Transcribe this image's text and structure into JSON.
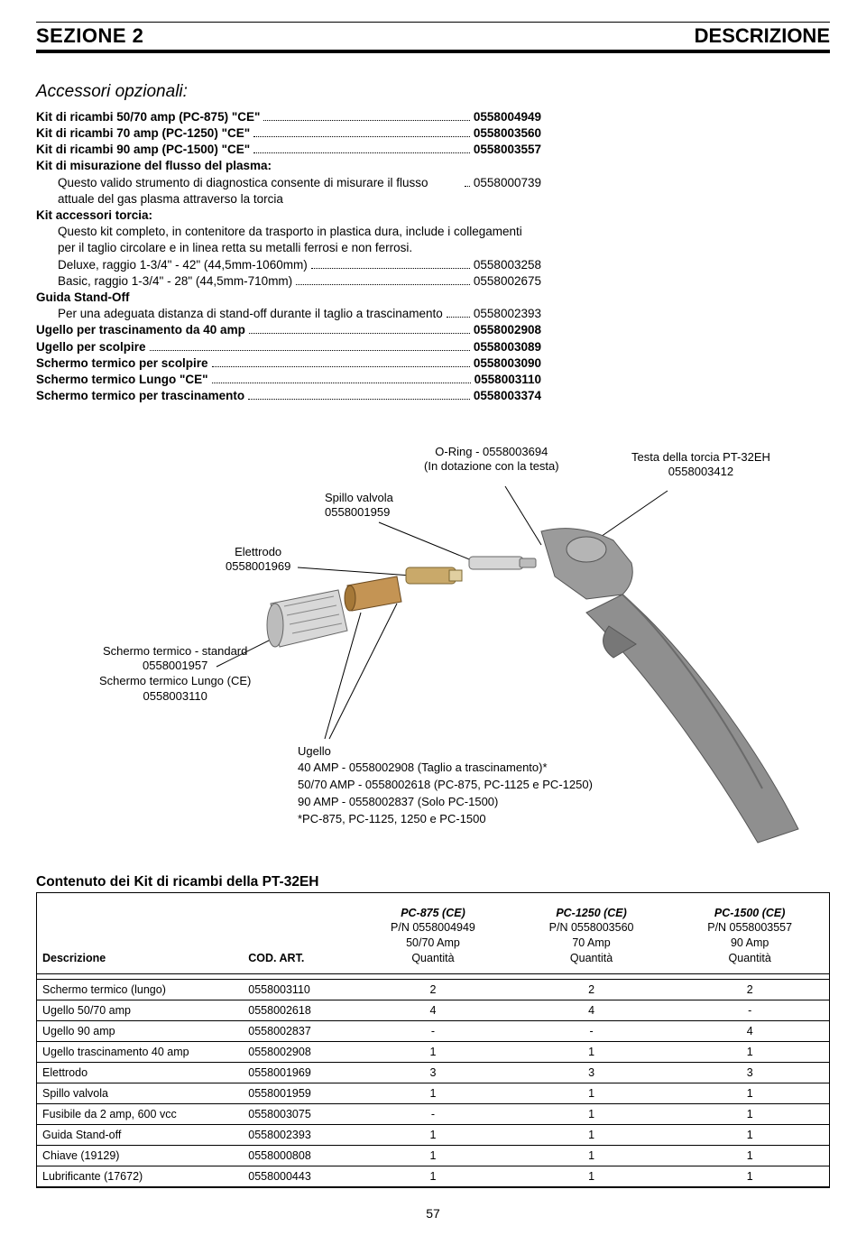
{
  "header": {
    "left": "SEZIONE 2",
    "right": "DESCRIZIONE"
  },
  "accessories": {
    "title": "Accessori opzionali:",
    "items": [
      {
        "label": "Kit di ricambi 50/70 amp (PC-875) \"CE\"",
        "code": "0558004949",
        "bold": true
      },
      {
        "label": "Kit di ricambi 70 amp (PC-1250) \"CE\"",
        "code": "0558003560",
        "bold": true
      },
      {
        "label": "Kit di ricambi 90 amp (PC-1500) \"CE\"",
        "code": "0558003557",
        "bold": true
      }
    ],
    "plasma_label": "Kit di misurazione del flusso del plasma:",
    "plasma_body": "Questo valido strumento di diagnostica consente di misurare il flusso attuale del gas plasma attraverso la torcia",
    "plasma_code": "0558000739",
    "torcia_label": "Kit accessori torcia:",
    "torcia_body1": "Questo kit completo, in contenitore da trasporto in plastica dura, include i collegamenti per il taglio circolare e in linea retta su metalli ferrosi e non ferrosi.",
    "deluxe_label": "Deluxe, raggio 1-3/4\" - 42\" (44,5mm-1060mm)",
    "deluxe_code": "0558003258",
    "basic_label": "Basic, raggio 1-3/4\" - 28\" (44,5mm-710mm)",
    "basic_code": "0558002675",
    "standoff_label": "Guida Stand-Off",
    "standoff_body": "Per una adeguata distanza di stand-off durante il taglio a trascinamento",
    "standoff_code": "0558002393",
    "tail": [
      {
        "label": "Ugello per trascinamento da 40 amp",
        "code": "0558002908",
        "bold": true
      },
      {
        "label": "Ugello per scolpire",
        "code": "0558003089",
        "bold": true
      },
      {
        "label": "Schermo termico per scolpire",
        "code": "0558003090",
        "bold": true
      },
      {
        "label": "Schermo termico Lungo \"CE\"",
        "code": "0558003110",
        "bold": true
      },
      {
        "label": "Schermo termico per trascinamento",
        "code": "0558003374",
        "bold": true
      }
    ]
  },
  "diagram": {
    "oring": {
      "l1": "O-Ring - 0558003694",
      "l2": "(In dotazione con la testa)"
    },
    "head": {
      "l1": "Testa della torcia PT-32EH",
      "l2": "0558003412"
    },
    "spillo": {
      "l1": "Spillo valvola",
      "l2": "0558001959"
    },
    "elettrodo": {
      "l1": "Elettrodo",
      "l2": "0558001969"
    },
    "schermo": {
      "l1": "Schermo termico - standard",
      "l2": "0558001957",
      "l3": "Schermo termico Lungo (CE)",
      "l4": "0558003110"
    },
    "ugello": {
      "title": "Ugello",
      "l1": "40 AMP - 0558002908 (Taglio a trascinamento)*",
      "l2": "50/70 AMP - 0558002618 (PC-875, PC-1125 e PC-1250)",
      "l3": "90 AMP - 0558002837 (Solo PC-1500)",
      "l4": "*PC-875, PC-1125, 1250 e PC-1500"
    },
    "colors": {
      "body": "#9b9b9b",
      "body_dark": "#6f6f6f",
      "metal": "#c9c9c9",
      "metal_light": "#e4e4e4",
      "line": "#000000"
    }
  },
  "table": {
    "title": "Contenuto dei Kit di ricambi della PT-32EH",
    "columns": {
      "desc": "Descrizione",
      "cod": "COD. ART.",
      "c1": {
        "model": "PC-875 (CE)",
        "pn": "P/N 0558004949",
        "amp": "50/70 Amp",
        "qty": "Quantità"
      },
      "c2": {
        "model": "PC-1250 (CE)",
        "pn": "P/N 0558003560",
        "amp": "70 Amp",
        "qty": "Quantità"
      },
      "c3": {
        "model": "PC-1500 (CE)",
        "pn": "P/N 0558003557",
        "amp": "90 Amp",
        "qty": "Quantità"
      }
    },
    "rows": [
      {
        "desc": "Schermo termico (lungo)",
        "cod": "0558003110",
        "q": [
          "2",
          "2",
          "2"
        ]
      },
      {
        "desc": "Ugello 50/70 amp",
        "cod": "0558002618",
        "q": [
          "4",
          "4",
          "-"
        ]
      },
      {
        "desc": "Ugello 90 amp",
        "cod": "0558002837",
        "q": [
          "-",
          "-",
          "4"
        ]
      },
      {
        "desc": "Ugello trascinamento 40 amp",
        "cod": "0558002908",
        "q": [
          "1",
          "1",
          "1"
        ]
      },
      {
        "desc": "Elettrodo",
        "cod": "0558001969",
        "q": [
          "3",
          "3",
          "3"
        ]
      },
      {
        "desc": "Spillo valvola",
        "cod": "0558001959",
        "q": [
          "1",
          "1",
          "1"
        ]
      },
      {
        "desc": "Fusibile da 2 amp, 600 vcc",
        "cod": "0558003075",
        "q": [
          "-",
          "1",
          "1"
        ]
      },
      {
        "desc": "Guida Stand-off",
        "cod": "0558002393",
        "q": [
          "1",
          "1",
          "1"
        ]
      },
      {
        "desc": "Chiave (19129)",
        "cod": "0558000808",
        "q": [
          "1",
          "1",
          "1"
        ]
      },
      {
        "desc": "Lubrificante (17672)",
        "cod": "0558000443",
        "q": [
          "1",
          "1",
          "1"
        ]
      }
    ]
  },
  "pagenum": "57"
}
